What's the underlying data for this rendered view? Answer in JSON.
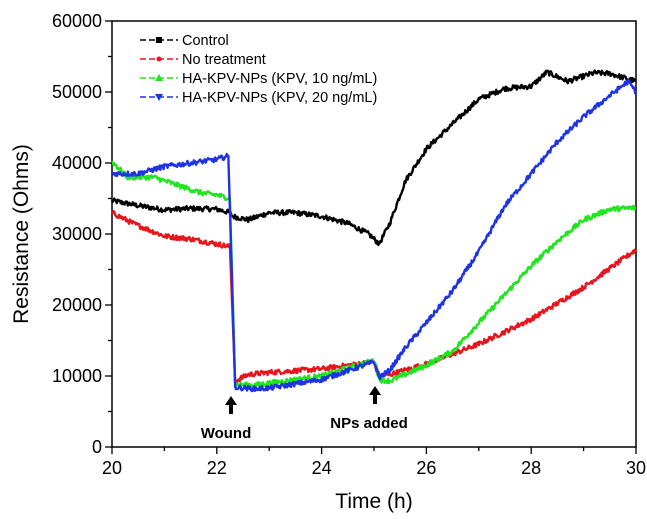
{
  "chart_data": {
    "type": "line",
    "xlabel": "Time (h)",
    "ylabel": "Resistance (Ohms)",
    "xlim": [
      20,
      30
    ],
    "ylim": [
      0,
      60000
    ],
    "x_ticks": [
      "20",
      "22",
      "24",
      "26",
      "28",
      "30"
    ],
    "y_ticks": [
      "0",
      "10000",
      "20000",
      "30000",
      "40000",
      "50000",
      "60000"
    ],
    "grid": false,
    "legend_position": "top-left",
    "series": [
      {
        "name": "Control",
        "color": "#000000",
        "marker": "square",
        "points": [
          [
            20.0,
            34700
          ],
          [
            20.5,
            34000
          ],
          [
            21.0,
            33400
          ],
          [
            21.5,
            33600
          ],
          [
            22.0,
            33500
          ],
          [
            22.25,
            33000
          ],
          [
            22.3,
            32500
          ],
          [
            22.6,
            32000
          ],
          [
            23.0,
            33000
          ],
          [
            23.5,
            33000
          ],
          [
            24.0,
            32500
          ],
          [
            24.5,
            31500
          ],
          [
            24.9,
            30000
          ],
          [
            25.1,
            28600
          ],
          [
            25.3,
            31500
          ],
          [
            25.6,
            37500
          ],
          [
            26.0,
            42000
          ],
          [
            26.5,
            45500
          ],
          [
            27.0,
            49000
          ],
          [
            27.5,
            50500
          ],
          [
            28.0,
            50800
          ],
          [
            28.3,
            52800
          ],
          [
            28.7,
            51500
          ],
          [
            29.2,
            52700
          ],
          [
            29.5,
            52600
          ],
          [
            30.0,
            51500
          ]
        ]
      },
      {
        "name": "No treatment",
        "color": "#e8141c",
        "marker": "circle",
        "points": [
          [
            20.0,
            33000
          ],
          [
            20.4,
            31500
          ],
          [
            21.0,
            29700
          ],
          [
            21.5,
            29300
          ],
          [
            22.0,
            28600
          ],
          [
            22.25,
            28200
          ],
          [
            22.35,
            9300
          ],
          [
            22.6,
            10200
          ],
          [
            23.0,
            10500
          ],
          [
            24.0,
            11000
          ],
          [
            25.0,
            12000
          ],
          [
            25.1,
            10000
          ],
          [
            25.3,
            10200
          ],
          [
            26.0,
            11700
          ],
          [
            27.0,
            14500
          ],
          [
            28.0,
            18000
          ],
          [
            29.0,
            22500
          ],
          [
            30.0,
            27800
          ]
        ]
      },
      {
        "name": "HA-KPV-NPs (KPV, 10 ng/mL)",
        "color": "#1ee61e",
        "marker": "triangle-up",
        "points": [
          [
            20.0,
            40200
          ],
          [
            20.3,
            38000
          ],
          [
            20.8,
            38000
          ],
          [
            21.2,
            37000
          ],
          [
            21.7,
            35800
          ],
          [
            22.0,
            35500
          ],
          [
            22.25,
            35000
          ],
          [
            22.35,
            8800
          ],
          [
            22.7,
            8700
          ],
          [
            23.0,
            9000
          ],
          [
            24.0,
            10000
          ],
          [
            25.0,
            12200
          ],
          [
            25.1,
            9500
          ],
          [
            25.3,
            9300
          ],
          [
            26.0,
            11500
          ],
          [
            26.5,
            13500
          ],
          [
            27.0,
            17500
          ],
          [
            27.5,
            21500
          ],
          [
            28.0,
            25500
          ],
          [
            28.5,
            29000
          ],
          [
            29.0,
            32000
          ],
          [
            29.5,
            33500
          ],
          [
            30.0,
            33700
          ]
        ]
      },
      {
        "name": "HA-KPV-NPs (KPV, 20 ng/mL)",
        "color": "#1e32e6",
        "marker": "triangle-down",
        "points": [
          [
            20.0,
            38500
          ],
          [
            20.5,
            38500
          ],
          [
            21.0,
            39500
          ],
          [
            21.5,
            40000
          ],
          [
            22.0,
            40500
          ],
          [
            22.22,
            41000
          ],
          [
            22.35,
            8400
          ],
          [
            22.7,
            8200
          ],
          [
            23.0,
            8300
          ],
          [
            24.0,
            9500
          ],
          [
            25.0,
            12000
          ],
          [
            25.1,
            9800
          ],
          [
            25.3,
            10800
          ],
          [
            25.6,
            14000
          ],
          [
            26.0,
            17500
          ],
          [
            26.5,
            22000
          ],
          [
            27.0,
            27500
          ],
          [
            27.5,
            34000
          ],
          [
            28.0,
            38500
          ],
          [
            28.5,
            43000
          ],
          [
            29.0,
            46500
          ],
          [
            29.5,
            49500
          ],
          [
            29.85,
            51500
          ],
          [
            30.0,
            50000
          ]
        ]
      }
    ],
    "annotations": [
      {
        "text": "Wound",
        "x": 22.3
      },
      {
        "text": "NPs added",
        "x": 25.05
      }
    ]
  }
}
